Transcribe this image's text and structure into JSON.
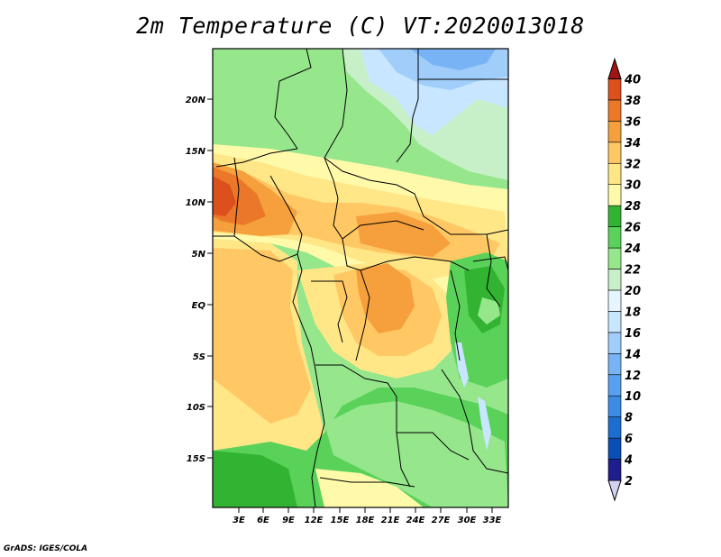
{
  "title": "2m Temperature (C) VT:2020013018",
  "credit": "GrADS: IGES/COLA",
  "map": {
    "lat_labels": [
      "20N",
      "15N",
      "10N",
      "5N",
      "EQ",
      "5S",
      "10S",
      "15S"
    ],
    "lon_labels": [
      "3E",
      "6E",
      "9E",
      "12E",
      "15E",
      "18E",
      "21E",
      "24E",
      "27E",
      "30E",
      "33E"
    ]
  },
  "colorbar": {
    "labels": [
      "2",
      "4",
      "6",
      "8",
      "10",
      "12",
      "14",
      "16",
      "18",
      "20",
      "22",
      "24",
      "26",
      "28",
      "30",
      "32",
      "34",
      "36",
      "38",
      "40"
    ],
    "colors": [
      "#1e1e8c",
      "#0a50b4",
      "#1e6ed2",
      "#3c8ce6",
      "#5aa0f0",
      "#78b4f5",
      "#a0cdfa",
      "#c8e6ff",
      "#e6f5ff",
      "#c8f0c8",
      "#96e68c",
      "#5ad25a",
      "#32b432",
      "#fffaaa",
      "#ffe687",
      "#ffc864",
      "#f5a03c",
      "#eb7828",
      "#dc501e",
      "#c82814",
      "#a01414"
    ]
  }
}
